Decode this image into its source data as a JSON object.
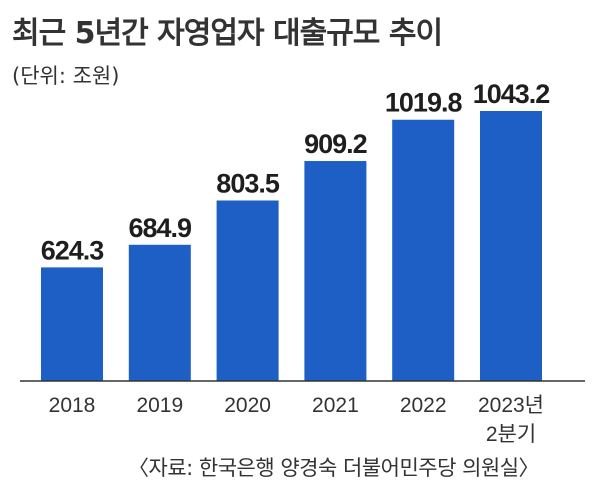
{
  "chart_data": {
    "type": "bar",
    "title": "최근 5년간 자영업자 대출규모 추이",
    "unit_note": "(단위: 조원)",
    "categories": [
      "2018",
      "2019",
      "2020",
      "2021",
      "2022",
      "2023년\n2분기"
    ],
    "values": [
      624.3,
      684.9,
      803.5,
      909.2,
      1019.8,
      1043.2
    ],
    "value_labels": [
      "624.3",
      "684.9",
      "803.5",
      "909.2",
      "1019.8",
      "1043.2"
    ],
    "ylim": [
      320,
      1043.2
    ],
    "grid": false,
    "legend": "none",
    "bar_color": "#1d5fc4",
    "axis_color": "#333333",
    "source": "〈자료: 한국은행   양경숙 더불어민주당 의원실〉"
  }
}
